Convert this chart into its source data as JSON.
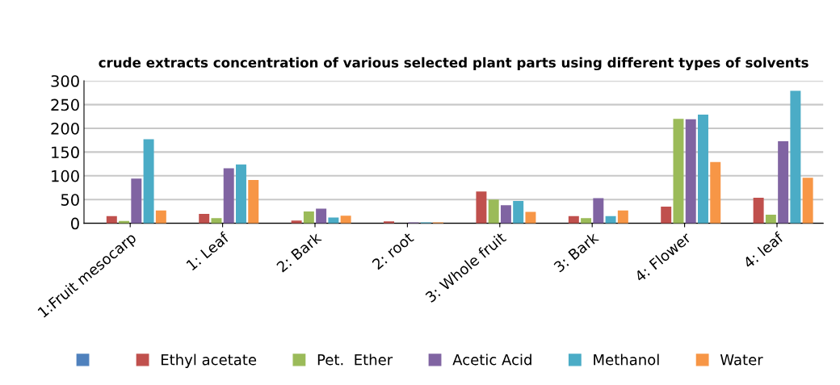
{
  "chart_data": {
    "type": "bar",
    "title": "crude extracts concentration of various selected plant parts using different types of solvents",
    "categories": [
      "1:Fruit mesocarp",
      "1: Leaf",
      "2: Bark",
      "2: root",
      "3: Whole fruit",
      "3: Bark",
      "4: Flower",
      "4: leaf"
    ],
    "series": [
      {
        "color": "#4f81bd",
        "values": [
          null,
          null,
          null,
          null,
          null,
          null,
          null,
          null
        ]
      },
      {
        "name": "Ethyl acetate",
        "color": "#c0504d",
        "values": [
          15,
          20,
          6,
          4,
          67,
          15,
          35,
          54
        ]
      },
      {
        "name": "Pet.  Ether",
        "color": "#9bbb59",
        "values": [
          5,
          11,
          25,
          0,
          50,
          11,
          220,
          18
        ]
      },
      {
        "name": "Acetic Acid",
        "color": "#8064a2",
        "values": [
          94,
          116,
          31,
          2,
          38,
          53,
          219,
          173
        ]
      },
      {
        "name": "Methanol",
        "color": "#4bacc6",
        "values": [
          177,
          124,
          12,
          2,
          47,
          15,
          229,
          279
        ]
      },
      {
        "name": "Water",
        "color": "#f79646",
        "values": [
          27,
          91,
          16,
          2,
          24,
          27,
          129,
          96
        ]
      }
    ],
    "ylim": [
      0,
      300
    ],
    "yticks": [
      0,
      50,
      100,
      150,
      200,
      250,
      300
    ],
    "grid": "y",
    "legend": "bottom"
  }
}
